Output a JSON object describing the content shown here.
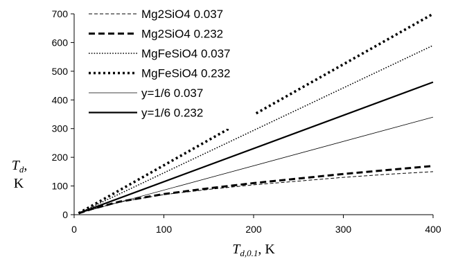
{
  "chart_data": {
    "type": "line",
    "title": "",
    "xlabel": {
      "symbol": "T",
      "subscript": "d,0.1",
      "unit": ", K"
    },
    "ylabel": {
      "symbol": "T",
      "subscript": "d",
      "line1_suffix": ",",
      "line2": "K"
    },
    "xlim": [
      0,
      400
    ],
    "ylim": [
      0,
      700
    ],
    "xticks": [
      0,
      100,
      200,
      300,
      400
    ],
    "yticks": [
      0,
      100,
      200,
      300,
      400,
      500,
      600,
      700
    ],
    "grid": false,
    "legend_position": "top-left",
    "series": [
      {
        "name": "Mg2SiO4 0.037",
        "style": "thin-dashed",
        "color": "#000000",
        "points": [
          [
            5,
            5
          ],
          [
            20,
            19
          ],
          [
            50,
            44
          ],
          [
            100,
            70
          ],
          [
            150,
            88
          ],
          [
            200,
            104
          ],
          [
            250,
            117
          ],
          [
            300,
            130
          ],
          [
            350,
            141
          ],
          [
            400,
            150
          ]
        ]
      },
      {
        "name": "Mg2SiO4 0.232",
        "style": "thick-dashed",
        "color": "#000000",
        "points": [
          [
            5,
            5
          ],
          [
            20,
            20
          ],
          [
            50,
            45
          ],
          [
            100,
            72
          ],
          [
            150,
            92
          ],
          [
            200,
            110
          ],
          [
            250,
            126
          ],
          [
            300,
            142
          ],
          [
            350,
            156
          ],
          [
            400,
            170
          ]
        ]
      },
      {
        "name": "MgFeSiO4 0.037",
        "style": "thin-dotted",
        "color": "#000000",
        "points": [
          [
            5,
            5
          ],
          [
            400,
            590
          ]
        ]
      },
      {
        "name": "MgFeSiO4 0.232",
        "style": "thick-dotted",
        "color": "#000000",
        "points": [
          [
            5,
            5
          ],
          [
            400,
            700
          ]
        ]
      },
      {
        "name": "y=1/6 0.037",
        "style": "thin-solid",
        "color": "#000000",
        "points": [
          [
            5,
            5
          ],
          [
            400,
            340
          ]
        ]
      },
      {
        "name": "y=1/6 0.232",
        "style": "thick-solid",
        "color": "#000000",
        "points": [
          [
            5,
            5
          ],
          [
            400,
            462
          ]
        ]
      }
    ]
  }
}
